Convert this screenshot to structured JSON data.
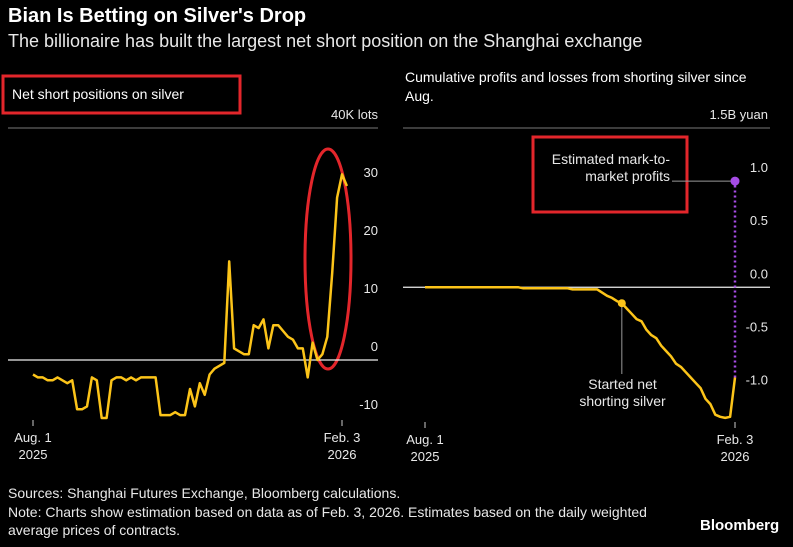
{
  "header": {
    "title": "Bian Is Betting on Silver's Drop",
    "subtitle": "The billionaire has built the largest net short position on the Shanghai exchange"
  },
  "chart_data": [
    {
      "type": "line",
      "title": "Net short positions on silver",
      "color": "#fcc419",
      "categories": [
        "Aug. 1",
        null,
        null,
        null,
        null,
        null,
        null,
        null,
        null,
        null,
        null,
        null,
        null,
        null,
        null,
        null,
        null,
        null,
        null,
        null,
        null,
        null,
        null,
        null,
        null,
        null,
        null,
        null,
        null,
        null,
        null,
        null,
        null,
        null,
        null,
        null,
        null,
        null,
        null,
        null,
        null,
        null,
        null,
        null,
        null,
        null,
        null,
        null,
        null,
        null,
        null,
        null,
        null,
        null,
        null,
        null,
        null,
        null,
        null,
        null,
        null,
        null,
        null,
        "Feb. 3",
        null
      ],
      "category_years": [
        "2025",
        null,
        null,
        null,
        null,
        null,
        null,
        null,
        null,
        null,
        null,
        null,
        null,
        null,
        null,
        null,
        null,
        null,
        null,
        null,
        null,
        null,
        null,
        null,
        null,
        null,
        null,
        null,
        null,
        null,
        null,
        null,
        null,
        null,
        null,
        null,
        null,
        null,
        null,
        null,
        null,
        null,
        null,
        null,
        null,
        null,
        null,
        null,
        null,
        null,
        null,
        null,
        null,
        null,
        null,
        null,
        null,
        null,
        null,
        null,
        null,
        null,
        null,
        "2026",
        null
      ],
      "values": [
        -2.5,
        -3,
        -3,
        -3.5,
        -3.5,
        -3,
        -3.5,
        -4,
        -3.5,
        -8.5,
        -8.5,
        -8,
        -3,
        -3.5,
        -10,
        -10,
        -3.5,
        -3,
        -3,
        -3.5,
        -3,
        -3.5,
        -3,
        -3,
        -3,
        -3,
        -9.5,
        -9.5,
        -9.5,
        -9,
        -9.5,
        -9.5,
        -5,
        -8,
        -4,
        -6,
        -2.5,
        -1.5,
        -1,
        -0.5,
        17,
        2,
        1.5,
        1,
        1,
        6,
        5.5,
        7,
        2,
        6,
        6,
        5,
        4,
        3.5,
        2,
        2,
        -3,
        3,
        0,
        1,
        4,
        15,
        28,
        32,
        30
      ],
      "ylim": [
        -10,
        40
      ],
      "yticks": [
        -10,
        0,
        10,
        20,
        30,
        {
          "value": 40,
          "label": "40K lots"
        }
      ]
    },
    {
      "type": "line",
      "title": "Cumulative profits and losses from shorting silver since Aug.",
      "color": "#fcc419",
      "categories": [
        "Aug. 1",
        null,
        null,
        null,
        null,
        null,
        null,
        null,
        null,
        null,
        null,
        null,
        null,
        null,
        null,
        null,
        null,
        null,
        null,
        null,
        null,
        null,
        null,
        null,
        null,
        null,
        null,
        null,
        null,
        null,
        null,
        null,
        null,
        null,
        null,
        null,
        null,
        null,
        null,
        null,
        null,
        null,
        null,
        null,
        null,
        null,
        null,
        null,
        null,
        null,
        null,
        null,
        null,
        null,
        null,
        null,
        null,
        null,
        null,
        null,
        null,
        null,
        null,
        "Feb. 3"
      ],
      "category_years": [
        "2025",
        null,
        null,
        null,
        null,
        null,
        null,
        null,
        null,
        null,
        null,
        null,
        null,
        null,
        null,
        null,
        null,
        null,
        null,
        null,
        null,
        null,
        null,
        null,
        null,
        null,
        null,
        null,
        null,
        null,
        null,
        null,
        null,
        null,
        null,
        null,
        null,
        null,
        null,
        null,
        null,
        null,
        null,
        null,
        null,
        null,
        null,
        null,
        null,
        null,
        null,
        null,
        null,
        null,
        null,
        null,
        null,
        null,
        null,
        null,
        null,
        null,
        null,
        "2026"
      ],
      "values": [
        0,
        0,
        0,
        0,
        0,
        0,
        0,
        0,
        0,
        0,
        0,
        0,
        0,
        0,
        0,
        0,
        0,
        0,
        0,
        0,
        -0.01,
        -0.01,
        -0.01,
        -0.01,
        -0.01,
        -0.01,
        -0.01,
        -0.01,
        -0.01,
        -0.01,
        -0.02,
        -0.02,
        -0.02,
        -0.02,
        -0.02,
        -0.02,
        -0.05,
        -0.08,
        -0.1,
        -0.13,
        -0.15,
        -0.2,
        -0.25,
        -0.3,
        -0.32,
        -0.4,
        -0.45,
        -0.48,
        -0.55,
        -0.6,
        -0.65,
        -0.72,
        -0.75,
        -0.8,
        -0.85,
        -0.9,
        -0.95,
        -1.05,
        -1.1,
        -1.2,
        -1.22,
        -1.23,
        -1.22,
        -0.85
      ],
      "ylim": [
        -1.25,
        1.5
      ],
      "yticks": [
        {
          "value": -1.0,
          "label": "-1.0"
        },
        {
          "value": -0.5,
          "label": "-0.5"
        },
        {
          "value": 0,
          "label": "0.0"
        },
        {
          "value": 0.5,
          "label": "0.5"
        },
        {
          "value": 1.0,
          "label": "1.0"
        },
        {
          "value": 1.5,
          "label": "1.5B yuan"
        }
      ],
      "annotations": [
        {
          "text": "Started net shorting silver"
        }
      ],
      "estimate": {
        "label": "Estimated mark-to-market profits",
        "value": 1.0,
        "color": "#a64ce6"
      }
    }
  ],
  "footer": {
    "source": "Sources: Shanghai Futures Exchange, Bloomberg calculations.",
    "note": "Note: Charts show estimation based on data as of Feb. 3, 2026. Estimates based on the daily weighted average prices of contracts.",
    "brand": "Bloomberg"
  }
}
